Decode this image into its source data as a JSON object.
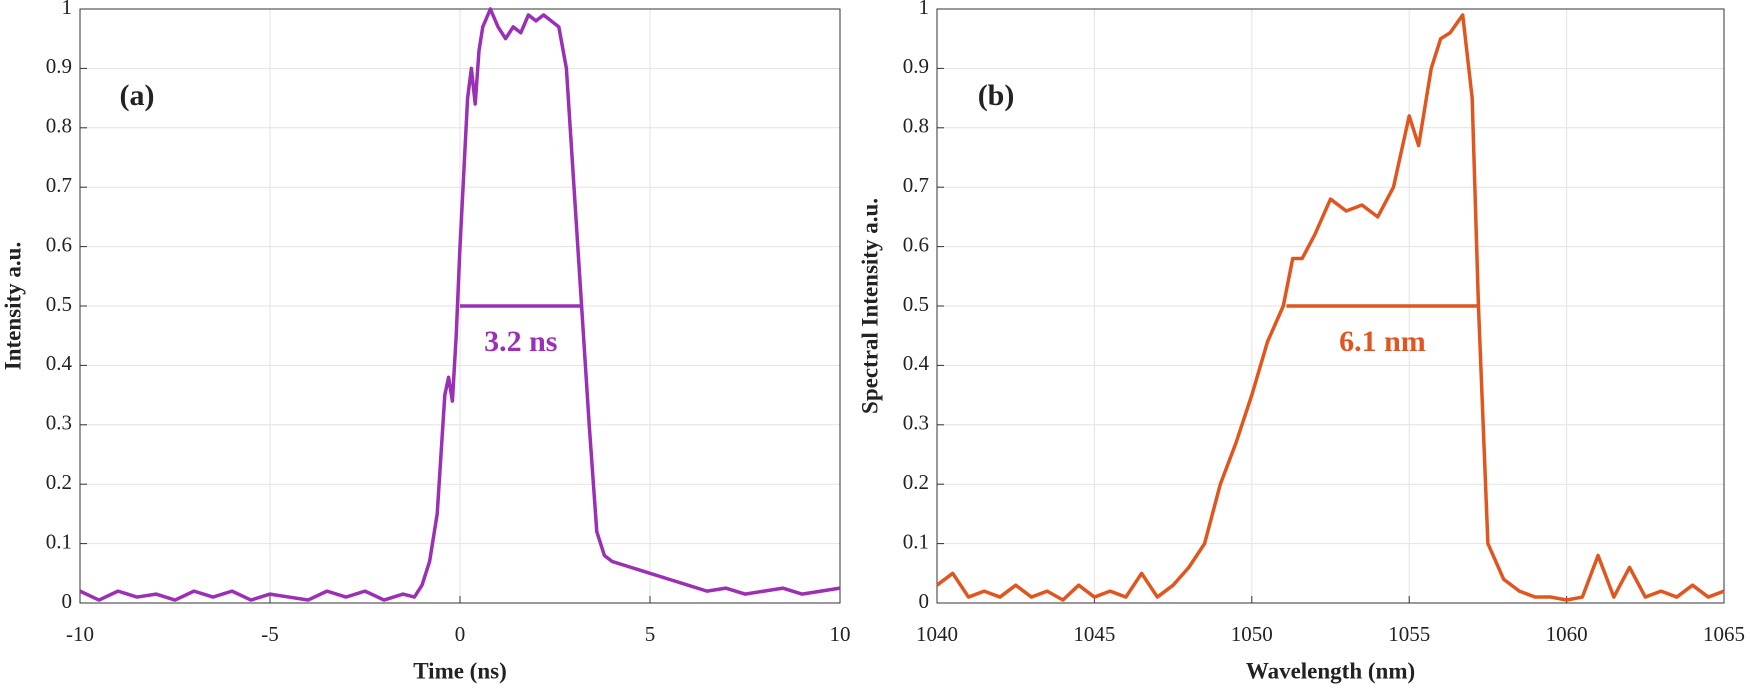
{
  "chart_data": [
    {
      "type": "line",
      "panel_label": "(a)",
      "xlabel": "Time (ns)",
      "ylabel": "Intensity a.u.",
      "xlim": [
        -10,
        10
      ],
      "xticks": [
        -10,
        -5,
        0,
        5,
        10
      ],
      "ylim": [
        0,
        1
      ],
      "yticks": [
        0,
        0.1,
        0.2,
        0.3,
        0.4,
        0.5,
        0.6,
        0.7,
        0.8,
        0.9,
        1
      ],
      "grid": true,
      "series": [
        {
          "color": "#9b30b5",
          "x": [
            -10,
            -9.5,
            -9,
            -8.5,
            -8,
            -7.5,
            -7,
            -6.5,
            -6,
            -5.5,
            -5,
            -4.5,
            -4,
            -3.5,
            -3,
            -2.5,
            -2,
            -1.5,
            -1.2,
            -1,
            -0.8,
            -0.6,
            -0.4,
            -0.3,
            -0.2,
            -0.1,
            0,
            0.2,
            0.3,
            0.4,
            0.5,
            0.6,
            0.8,
            1,
            1.2,
            1.4,
            1.6,
            1.8,
            2,
            2.2,
            2.4,
            2.6,
            2.8,
            3,
            3.2,
            3.4,
            3.6,
            3.8,
            4,
            4.5,
            5,
            5.5,
            6,
            6.5,
            7,
            7.5,
            8,
            8.5,
            9,
            9.5,
            10
          ],
          "values": [
            0.02,
            0.005,
            0.02,
            0.01,
            0.015,
            0.005,
            0.02,
            0.01,
            0.02,
            0.005,
            0.015,
            0.01,
            0.005,
            0.02,
            0.01,
            0.02,
            0.005,
            0.015,
            0.01,
            0.03,
            0.07,
            0.15,
            0.35,
            0.38,
            0.34,
            0.45,
            0.6,
            0.85,
            0.9,
            0.84,
            0.93,
            0.97,
            1.0,
            0.97,
            0.95,
            0.97,
            0.96,
            0.99,
            0.98,
            0.99,
            0.98,
            0.97,
            0.9,
            0.7,
            0.5,
            0.3,
            0.12,
            0.08,
            0.07,
            0.06,
            0.05,
            0.04,
            0.03,
            0.02,
            0.025,
            0.015,
            0.02,
            0.025,
            0.015,
            0.02,
            0.025
          ]
        }
      ],
      "fwhm": {
        "x": [
          0,
          3.2
        ],
        "y": 0.5,
        "label": "3.2 ns"
      }
    },
    {
      "type": "line",
      "panel_label": "(b)",
      "xlabel": "Wavelength (nm)",
      "ylabel": "Spectral Intensity a.u.",
      "xlim": [
        1040,
        1065
      ],
      "xticks": [
        1040,
        1045,
        1050,
        1055,
        1060,
        1065
      ],
      "ylim": [
        0,
        1
      ],
      "yticks": [
        0,
        0.1,
        0.2,
        0.3,
        0.4,
        0.5,
        0.6,
        0.7,
        0.8,
        0.9,
        1
      ],
      "grid": true,
      "series": [
        {
          "color": "#e0561e",
          "x": [
            1040,
            1040.5,
            1041,
            1041.5,
            1042,
            1042.5,
            1043,
            1043.5,
            1044,
            1044.5,
            1045,
            1045.5,
            1046,
            1046.5,
            1047,
            1047.5,
            1048,
            1048.5,
            1049,
            1049.5,
            1050,
            1050.5,
            1051,
            1051.3,
            1051.6,
            1052,
            1052.5,
            1053,
            1053.5,
            1054,
            1054.5,
            1055,
            1055.3,
            1055.7,
            1056,
            1056.3,
            1056.7,
            1057,
            1057.2,
            1057.5,
            1058,
            1058.5,
            1059,
            1059.5,
            1060,
            1060.5,
            1061,
            1061.5,
            1062,
            1062.5,
            1063,
            1063.5,
            1064,
            1064.5,
            1065
          ],
          "values": [
            0.03,
            0.05,
            0.01,
            0.02,
            0.01,
            0.03,
            0.01,
            0.02,
            0.005,
            0.03,
            0.01,
            0.02,
            0.01,
            0.05,
            0.01,
            0.03,
            0.06,
            0.1,
            0.2,
            0.27,
            0.35,
            0.44,
            0.5,
            0.58,
            0.58,
            0.62,
            0.68,
            0.66,
            0.67,
            0.65,
            0.7,
            0.82,
            0.77,
            0.9,
            0.95,
            0.96,
            0.99,
            0.85,
            0.5,
            0.1,
            0.04,
            0.02,
            0.01,
            0.01,
            0.005,
            0.01,
            0.08,
            0.01,
            0.06,
            0.01,
            0.02,
            0.01,
            0.03,
            0.01,
            0.02
          ]
        }
      ],
      "fwhm": {
        "x": [
          1051.1,
          1057.2
        ],
        "y": 0.5,
        "label": "6.1 nm"
      }
    }
  ]
}
